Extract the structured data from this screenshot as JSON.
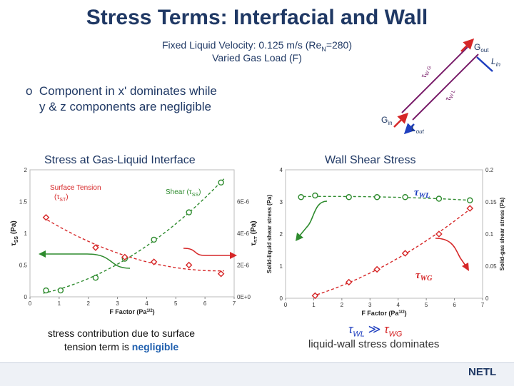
{
  "slide": {
    "title": "Stress Terms: Interfacial and Wall",
    "subtitle_line1": "Fixed Liquid Velocity: 0.125 m/s (Re",
    "subtitle_sub": "N",
    "subtitle_tail": "=280)",
    "subtitle_line2": "Varied Gas Load (F)",
    "bullet_marker": "o",
    "bullet_text_1": "Component in x' dominates while",
    "bullet_text_2": "y & z components are negligible",
    "left_chart_title": "Stress at Gas-Liquid Interface",
    "right_chart_title": "Wall Shear Stress",
    "left_note_1": "stress contribution due to surface",
    "left_note_2": "tension term is ",
    "left_note_bold": "negligible",
    "right_note_tail": "liquid-wall stress dominates",
    "footer_logo": "NETL"
  },
  "schematic": {
    "g_out": "G",
    "g_out_sub": "out",
    "l_in": "L",
    "l_in_sub": "in",
    "g_in": "G",
    "g_in_sub": "in",
    "l_out": "L",
    "l_out_sub": "out",
    "tau_left": "τ",
    "tau_left_sub": "W G",
    "tau_right": "τ",
    "tau_right_sub": "W L",
    "colors": {
      "gas": "#d62728",
      "liquid": "#1f3fbf",
      "pipe": "#7a1f6b"
    }
  },
  "chart_data": [
    {
      "type": "scatter",
      "xlabel": "F Factor (Pa",
      "xlabel_sup": "1/2",
      "xlabel_tail": ")",
      "ylabel_left": "τ",
      "ylabel_left_sub": "SS",
      "ylabel_left_unit": " (Pa)",
      "ylabel_right": "τ",
      "ylabel_right_sub": "ST",
      "ylabel_right_unit": " (Pa)",
      "xlim": [
        0,
        7
      ],
      "ylim_left": [
        0,
        2
      ],
      "ylim_right": [
        0,
        8e-06
      ],
      "x_ticks": [
        "0",
        "1",
        "2",
        "3",
        "4",
        "5",
        "6",
        "7"
      ],
      "y_ticks_left": [
        "0",
        "0.5",
        "1",
        "1.5",
        "2"
      ],
      "y_ticks_right": [
        "0E+0",
        "2E-6",
        "4E-6",
        "6E-6"
      ],
      "series": [
        {
          "name": "Shear (τ",
          "name_sub": "SS",
          "name_tail": ")",
          "axis": "left",
          "marker": "circle",
          "color": "#2e8b2e",
          "x": [
            0.55,
            1.05,
            2.25,
            3.25,
            4.25,
            5.45,
            6.55
          ],
          "y": [
            0.1,
            0.1,
            0.3,
            0.6,
            0.9,
            1.33,
            1.8
          ]
        },
        {
          "name": "Surface Tension",
          "name_line2": "(τ",
          "name_sub": "ST",
          "name_tail": ")",
          "axis": "right",
          "marker": "diamond",
          "color": "#d62728",
          "x": [
            0.55,
            2.25,
            3.25,
            4.25,
            5.45,
            6.55
          ],
          "y": [
            5e-06,
            3.1e-06,
            2.5e-06,
            2.2e-06,
            2e-06,
            1.45e-06
          ]
        }
      ]
    },
    {
      "type": "scatter",
      "xlabel": "F Factor (Pa",
      "xlabel_sup": "1/2",
      "xlabel_tail": ")",
      "ylabel_left": "Solid-liquid shear stress (Pa)",
      "ylabel_right": "Solid-gas shear stress (Pa)",
      "xlim": [
        0,
        7
      ],
      "ylim_left": [
        0,
        4
      ],
      "ylim_right": [
        0,
        0.2
      ],
      "x_ticks": [
        "0",
        "1",
        "2",
        "3",
        "4",
        "5",
        "6",
        "7"
      ],
      "y_ticks_left": [
        "0",
        "1",
        "2",
        "3",
        "4"
      ],
      "y_ticks_right": [
        "0",
        "0.05",
        "0.1",
        "0.15",
        "0.2"
      ],
      "series": [
        {
          "name": "τ",
          "name_sub": "WL",
          "axis": "left",
          "marker": "circle",
          "color": "#2e8b2e",
          "x": [
            0.55,
            1.05,
            2.25,
            3.25,
            4.25,
            5.45,
            6.55
          ],
          "y": [
            3.15,
            3.2,
            3.15,
            3.15,
            3.15,
            3.1,
            3.05
          ]
        },
        {
          "name": "τ",
          "name_sub": "WG",
          "axis": "right",
          "marker": "diamond",
          "color": "#d62728",
          "x": [
            1.05,
            2.25,
            3.25,
            4.25,
            5.45,
            6.55
          ],
          "y": [
            0.004,
            0.025,
            0.045,
            0.07,
            0.1,
            0.14
          ]
        }
      ],
      "comparison_left": "τ",
      "comparison_left_sub": "WL",
      "comparison_op": "≫",
      "comparison_right": "τ",
      "comparison_right_sub": "WG"
    }
  ]
}
